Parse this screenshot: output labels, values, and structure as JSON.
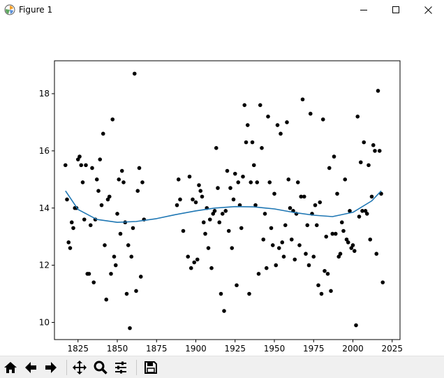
{
  "window": {
    "title": "Figure 1",
    "app_icon": "matplotlib-logo-icon"
  },
  "window_controls": [
    "minimize-icon",
    "maximize-icon",
    "close-icon"
  ],
  "toolbar": {
    "buttons": [
      "home-icon",
      "back-arrow-icon",
      "forward-arrow-icon",
      "pan-move-icon",
      "zoom-magnifier-icon",
      "configure-subplots-icon",
      "save-floppy-icon"
    ]
  },
  "colors": {
    "points": "#000000",
    "curve": "#1f77b4",
    "toolbar_bg": "#f0f0f0"
  },
  "chart_data": {
    "type": "scatter",
    "title": "",
    "xlabel": "",
    "ylabel": "",
    "xlim": [
      1810,
      2030
    ],
    "ylim": [
      9.4,
      19.15
    ],
    "xticks": [
      1825,
      1850,
      1875,
      1900,
      1925,
      1950,
      1975,
      2000,
      2025
    ],
    "xtick_labels": [
      "1825",
      "1850",
      "1875",
      "1900",
      "1925",
      "1950",
      "1975",
      "2000",
      "2025"
    ],
    "yticks": [
      10,
      12,
      14,
      16,
      18
    ],
    "ytick_labels": [
      "10",
      "12",
      "14",
      "16",
      "18"
    ],
    "grid": false,
    "legend": "none",
    "series": [
      {
        "kind": "points",
        "color": "#000000",
        "points": [
          [
            1817,
            15.5
          ],
          [
            1818,
            14.3
          ],
          [
            1819,
            12.8
          ],
          [
            1820,
            12.6
          ],
          [
            1821,
            13.5
          ],
          [
            1822,
            13.3
          ],
          [
            1823,
            14.0
          ],
          [
            1824,
            14.0
          ],
          [
            1825,
            15.7
          ],
          [
            1826,
            15.8
          ],
          [
            1827,
            15.5
          ],
          [
            1828,
            14.9
          ],
          [
            1829,
            13.6
          ],
          [
            1830,
            15.5
          ],
          [
            1831,
            11.7
          ],
          [
            1832,
            11.7
          ],
          [
            1833,
            13.4
          ],
          [
            1834,
            15.4
          ],
          [
            1835,
            11.4
          ],
          [
            1836,
            13.6
          ],
          [
            1837,
            15.0
          ],
          [
            1838,
            14.6
          ],
          [
            1839,
            15.7
          ],
          [
            1840,
            14.1
          ],
          [
            1841,
            16.6
          ],
          [
            1842,
            12.7
          ],
          [
            1843,
            10.8
          ],
          [
            1844,
            14.3
          ],
          [
            1845,
            14.4
          ],
          [
            1846,
            11.7
          ],
          [
            1847,
            17.1
          ],
          [
            1848,
            12.3
          ],
          [
            1849,
            12.0
          ],
          [
            1850,
            13.8
          ],
          [
            1851,
            15.0
          ],
          [
            1852,
            13.1
          ],
          [
            1853,
            15.3
          ],
          [
            1854,
            14.9
          ],
          [
            1855,
            13.5
          ],
          [
            1856,
            11.0
          ],
          [
            1857,
            12.7
          ],
          [
            1858,
            9.8
          ],
          [
            1859,
            12.3
          ],
          [
            1860,
            13.3
          ],
          [
            1861,
            18.7
          ],
          [
            1862,
            11.1
          ],
          [
            1863,
            14.6
          ],
          [
            1864,
            15.4
          ],
          [
            1865,
            11.6
          ],
          [
            1866,
            14.9
          ],
          [
            1867,
            13.6
          ],
          [
            1888,
            14.1
          ],
          [
            1889,
            15.0
          ],
          [
            1890,
            14.3
          ],
          [
            1892,
            13.2
          ],
          [
            1895,
            12.3
          ],
          [
            1896,
            15.1
          ],
          [
            1897,
            11.9
          ],
          [
            1898,
            14.3
          ],
          [
            1899,
            12.1
          ],
          [
            1900,
            14.2
          ],
          [
            1901,
            12.2
          ],
          [
            1902,
            14.8
          ],
          [
            1903,
            14.6
          ],
          [
            1904,
            14.4
          ],
          [
            1905,
            13.5
          ],
          [
            1906,
            13.1
          ],
          [
            1907,
            14.0
          ],
          [
            1908,
            12.6
          ],
          [
            1909,
            13.6
          ],
          [
            1910,
            11.9
          ],
          [
            1911,
            13.8
          ],
          [
            1912,
            13.9
          ],
          [
            1913,
            16.1
          ],
          [
            1914,
            14.7
          ],
          [
            1915,
            13.5
          ],
          [
            1916,
            11.0
          ],
          [
            1917,
            13.8
          ],
          [
            1918,
            10.4
          ],
          [
            1919,
            13.9
          ],
          [
            1920,
            15.3
          ],
          [
            1921,
            13.2
          ],
          [
            1922,
            14.7
          ],
          [
            1923,
            12.6
          ],
          [
            1924,
            14.3
          ],
          [
            1925,
            15.2
          ],
          [
            1926,
            11.3
          ],
          [
            1927,
            14.9
          ],
          [
            1928,
            14.1
          ],
          [
            1929,
            13.3
          ],
          [
            1930,
            15.1
          ],
          [
            1931,
            17.6
          ],
          [
            1932,
            16.3
          ],
          [
            1933,
            16.9
          ],
          [
            1934,
            11.0
          ],
          [
            1935,
            14.9
          ],
          [
            1936,
            16.3
          ],
          [
            1937,
            15.5
          ],
          [
            1938,
            14.1
          ],
          [
            1939,
            14.9
          ],
          [
            1940,
            11.7
          ],
          [
            1941,
            17.6
          ],
          [
            1942,
            16.1
          ],
          [
            1943,
            12.9
          ],
          [
            1944,
            13.8
          ],
          [
            1945,
            11.9
          ],
          [
            1946,
            17.2
          ],
          [
            1947,
            14.9
          ],
          [
            1948,
            13.3
          ],
          [
            1949,
            12.7
          ],
          [
            1950,
            14.5
          ],
          [
            1951,
            12.0
          ],
          [
            1952,
            16.9
          ],
          [
            1953,
            12.6
          ],
          [
            1954,
            16.6
          ],
          [
            1955,
            12.8
          ],
          [
            1956,
            12.3
          ],
          [
            1957,
            13.4
          ],
          [
            1958,
            17.0
          ],
          [
            1959,
            15.0
          ],
          [
            1960,
            14.0
          ],
          [
            1961,
            12.9
          ],
          [
            1962,
            13.9
          ],
          [
            1963,
            12.2
          ],
          [
            1964,
            13.8
          ],
          [
            1965,
            14.9
          ],
          [
            1966,
            12.7
          ],
          [
            1967,
            14.4
          ],
          [
            1968,
            17.8
          ],
          [
            1969,
            14.4
          ],
          [
            1970,
            12.4
          ],
          [
            1971,
            13.4
          ],
          [
            1972,
            12.0
          ],
          [
            1973,
            17.3
          ],
          [
            1974,
            13.8
          ],
          [
            1975,
            12.3
          ],
          [
            1976,
            14.1
          ],
          [
            1977,
            13.4
          ],
          [
            1978,
            11.3
          ],
          [
            1979,
            14.2
          ],
          [
            1980,
            11.0
          ],
          [
            1981,
            17.1
          ],
          [
            1982,
            11.8
          ],
          [
            1983,
            13.0
          ],
          [
            1984,
            11.7
          ],
          [
            1985,
            15.4
          ],
          [
            1986,
            11.1
          ],
          [
            1987,
            13.1
          ],
          [
            1988,
            15.8
          ],
          [
            1989,
            13.1
          ],
          [
            1990,
            14.5
          ],
          [
            1991,
            12.3
          ],
          [
            1992,
            12.4
          ],
          [
            1993,
            13.5
          ],
          [
            1994,
            13.2
          ],
          [
            1995,
            15.0
          ],
          [
            1996,
            12.9
          ],
          [
            1997,
            12.8
          ],
          [
            1998,
            13.9
          ],
          [
            1999,
            12.6
          ],
          [
            2000,
            12.7
          ],
          [
            2001,
            12.5
          ],
          [
            2002,
            9.9
          ],
          [
            2003,
            17.2
          ],
          [
            2004,
            13.7
          ],
          [
            2005,
            15.6
          ],
          [
            2006,
            13.9
          ],
          [
            2007,
            16.3
          ],
          [
            2008,
            13.9
          ],
          [
            2009,
            13.8
          ],
          [
            2010,
            15.5
          ],
          [
            2011,
            12.9
          ],
          [
            2012,
            14.4
          ],
          [
            2013,
            16.2
          ],
          [
            2014,
            16.0
          ],
          [
            2015,
            12.4
          ],
          [
            2016,
            18.1
          ],
          [
            2017,
            16.0
          ],
          [
            2018,
            14.5
          ],
          [
            2019,
            11.4
          ]
        ]
      },
      {
        "kind": "line",
        "color": "#1f77b4",
        "points": [
          [
            1817,
            14.6
          ],
          [
            1825,
            13.95
          ],
          [
            1837,
            13.6
          ],
          [
            1850,
            13.5
          ],
          [
            1862,
            13.53
          ],
          [
            1875,
            13.63
          ],
          [
            1887,
            13.77
          ],
          [
            1900,
            13.9
          ],
          [
            1912,
            14.0
          ],
          [
            1925,
            14.05
          ],
          [
            1937,
            14.04
          ],
          [
            1950,
            13.97
          ],
          [
            1962,
            13.85
          ],
          [
            1975,
            13.75
          ],
          [
            1987,
            13.7
          ],
          [
            2000,
            13.85
          ],
          [
            2012,
            14.25
          ],
          [
            2018,
            14.6
          ]
        ]
      }
    ]
  }
}
